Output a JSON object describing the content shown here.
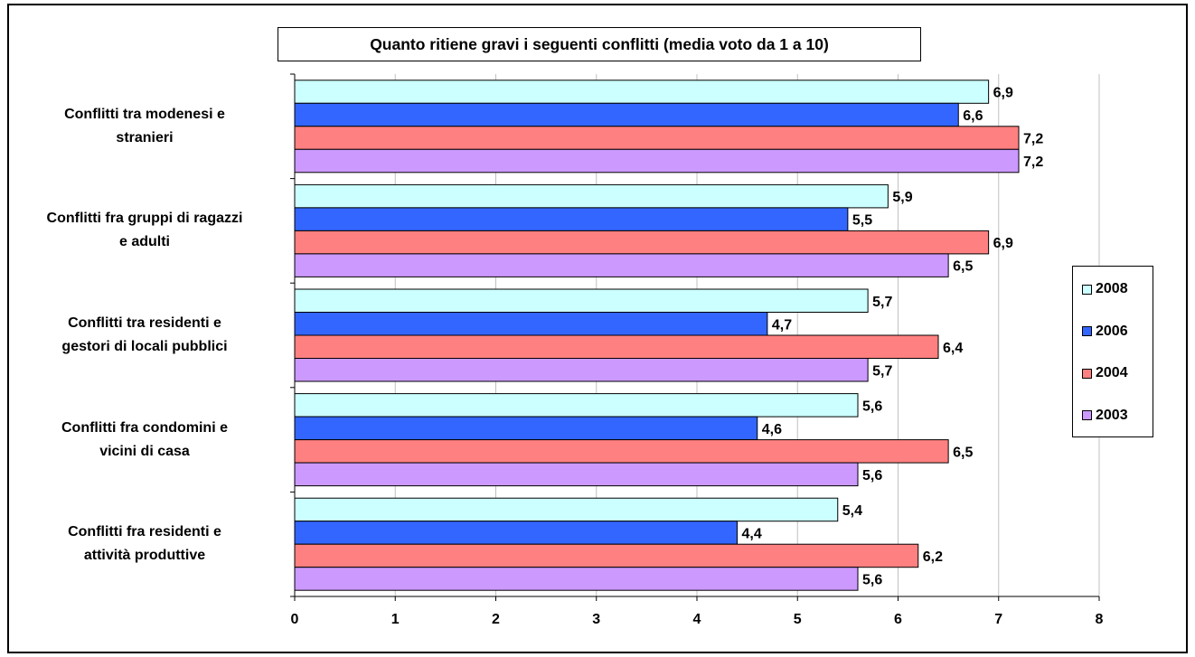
{
  "chart_data": {
    "type": "bar",
    "orientation": "horizontal",
    "title": "Quanto ritiene gravi i seguenti conflitti (media voto da 1 a 10)",
    "categories": [
      [
        "Conflitti tra modenesi e",
        "stranieri"
      ],
      [
        "Conflitti fra gruppi di ragazzi",
        "e adulti"
      ],
      [
        "Conflitti tra residenti e",
        "gestori di locali pubblici"
      ],
      [
        "Conflitti fra condomini e",
        "vicini di casa"
      ],
      [
        "Conflitti fra residenti e",
        "attività produttive"
      ]
    ],
    "series": [
      {
        "name": "2008",
        "color": "#ccffff",
        "values": [
          6.9,
          5.9,
          5.7,
          5.6,
          5.4
        ],
        "labels": [
          "6,9",
          "5,9",
          "5,7",
          "5,6",
          "5,4"
        ]
      },
      {
        "name": "2006",
        "color": "#3366ff",
        "values": [
          6.6,
          5.5,
          4.7,
          4.6,
          4.4
        ],
        "labels": [
          "6,6",
          "5,5",
          "4,7",
          "4,6",
          "4,4"
        ]
      },
      {
        "name": "2004",
        "color": "#ff8080",
        "values": [
          7.2,
          6.9,
          6.4,
          6.5,
          6.2
        ],
        "labels": [
          "7,2",
          "6,9",
          "6,4",
          "6,5",
          "6,2"
        ]
      },
      {
        "name": "2003",
        "color": "#cc99ff",
        "values": [
          7.2,
          6.5,
          5.7,
          5.6,
          5.6
        ],
        "labels": [
          "7,2",
          "6,5",
          "5,7",
          "5,6",
          "5,6"
        ]
      }
    ],
    "xlim": [
      0,
      8
    ],
    "xticks": [
      "0",
      "1",
      "2",
      "3",
      "4",
      "5",
      "6",
      "7",
      "8"
    ],
    "grid": "vertical",
    "legend_position": "right"
  }
}
